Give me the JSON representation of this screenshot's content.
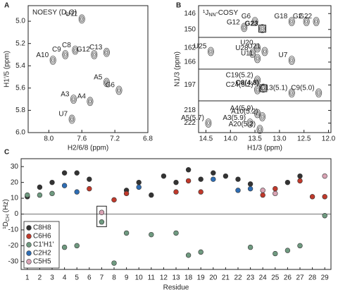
{
  "chart_data": [
    {
      "type": "spectrum",
      "panel": "A",
      "title": "NOESY (D₂O)",
      "x_label": "H2/6/8 (ppm)",
      "y_label": "H1′/5 (ppm)",
      "xlim": [
        8.25,
        6.8
      ],
      "ylim": [
        4.86,
        6.0
      ],
      "xticks": [
        {
          "value": 8.0,
          "label": "8.0"
        },
        {
          "value": 7.6,
          "label": "7.6"
        },
        {
          "value": 7.2,
          "label": "7.2"
        },
        {
          "value": 6.8,
          "label": "6.8"
        }
      ],
      "yticks": [
        {
          "value": 5.0,
          "label": "5.0"
        },
        {
          "value": 5.2,
          "label": "5.2"
        },
        {
          "value": 5.4,
          "label": "5.4"
        },
        {
          "value": 5.6,
          "label": "5.6"
        },
        {
          "value": 5.8,
          "label": "5.8"
        },
        {
          "value": 6.0,
          "label": "6.0"
        }
      ],
      "color": "#555555",
      "peaks": [
        {
          "label": "A10",
          "x": 7.95,
          "y": 5.35
        },
        {
          "label": "C9",
          "x": 7.8,
          "y": 5.3
        },
        {
          "label": "C8",
          "x": 7.68,
          "y": 5.26
        },
        {
          "label": "U11",
          "x": 7.6,
          "y": 4.98
        },
        {
          "label": "G12",
          "x": 7.45,
          "y": 5.3
        },
        {
          "label": "C13",
          "x": 7.3,
          "y": 5.28
        },
        {
          "label": "A5",
          "x": 7.3,
          "y": 5.55
        },
        {
          "label": "G6",
          "x": 7.15,
          "y": 5.62
        },
        {
          "label": "A3",
          "x": 7.7,
          "y": 5.7
        },
        {
          "label": "A4",
          "x": 7.5,
          "y": 5.72
        },
        {
          "label": "U7",
          "x": 7.72,
          "y": 5.88
        }
      ]
    },
    {
      "type": "spectrum",
      "panel": "B",
      "title": {
        "main": "¹J",
        "sub": "NN",
        "rest": "-COSY"
      },
      "x_label": "H1/3 (ppm)",
      "y_label": "N1/3 (ppm)",
      "xlim": [
        14.65,
        11.95
      ],
      "xticks": [
        {
          "value": 14.5,
          "label": "14.5"
        },
        {
          "value": 14.0,
          "label": "14.0"
        },
        {
          "value": 13.5,
          "label": "13.5"
        },
        {
          "value": 13.0,
          "label": "13.0"
        },
        {
          "value": 12.5,
          "label": "12.5"
        },
        {
          "value": 12.0,
          "label": "12.0"
        }
      ],
      "y_segments": [
        {
          "ylim": [
            144,
            152
          ],
          "yticks": [
            146,
            150
          ]
        },
        {
          "ylim": [
            159,
            168
          ],
          "yticks": [
            162,
            166
          ]
        },
        {
          "ylim": [
            192,
            202
          ],
          "yticks": [
            197
          ]
        },
        {
          "ylim": [
            215,
            225
          ],
          "yticks": [
            218,
            222
          ]
        }
      ],
      "color": "#555555",
      "peaks": [
        {
          "label": "G12",
          "x": 13.72,
          "y": 149.5
        },
        {
          "label": "G6",
          "x": 13.5,
          "y": 148
        },
        {
          "label": "G23",
          "x": 13.35,
          "y": 149.8,
          "bold": true
        },
        {
          "label": "G18",
          "x": 12.75,
          "y": 148
        },
        {
          "label": "G2",
          "x": 12.45,
          "y": 148
        },
        {
          "label": "G22",
          "x": 12.25,
          "y": 148
        },
        {
          "label": "U25",
          "x": 14.4,
          "y": 163
        },
        {
          "label": "U28",
          "x": 13.55,
          "y": 163.5
        },
        {
          "label": "U20",
          "x": 13.45,
          "y": 162
        },
        {
          "label": "U21",
          "x": 13.3,
          "y": 163
        },
        {
          "label": "U11",
          "x": 13.45,
          "y": 165
        },
        {
          "label": "U7",
          "x": 12.75,
          "y": 165.5
        },
        {
          "label": "C19(5.2)",
          "x": 13.45,
          "y": 195.5
        },
        {
          "label": "C24(5.2)",
          "x": 13.45,
          "y": 198.5
        },
        {
          "label": "C8(4.8)",
          "x": 13.33,
          "y": 198,
          "bold": true
        },
        {
          "label": "C13(5.1)",
          "x": 12.75,
          "y": 199.5
        },
        {
          "label": "C9(5.0)",
          "x": 12.2,
          "y": 199.5
        },
        {
          "label": "A4(5.9)",
          "x": 13.45,
          "y": 219
        },
        {
          "label": "A10(5.2)",
          "x": 13.35,
          "y": 220
        },
        {
          "label": "A3(5.9)",
          "x": 13.6,
          "y": 222
        },
        {
          "label": "A5(5.7)",
          "x": 14.45,
          "y": 222
        },
        {
          "label": "A20(5.2)",
          "x": 13.4,
          "y": 224
        }
      ]
    },
    {
      "type": "scatter",
      "panel": "C",
      "x_label": "Residue",
      "y_label": {
        "main": "¹D",
        "sub": "CH",
        "rest": " (Hz)"
      },
      "categories": [
        "1",
        "2",
        "3",
        "4",
        "5",
        "6",
        "7",
        "8",
        "9",
        "10",
        "11",
        "12",
        "13",
        "18",
        "19",
        "20",
        "21",
        "22",
        "23",
        "24",
        "25",
        "26",
        "27",
        "28",
        "29"
      ],
      "category_colors": [
        "#c0392b",
        "#c0392b",
        "#c0392b",
        "#c0392b",
        "#c0392b",
        "#c0392b",
        "#c0392b",
        "#c0392b",
        "#2e6db4",
        "#2e6db4",
        "#2e6db4",
        "#2e6db4",
        "#2e6db4",
        "#2e6db4",
        "#2e6db4",
        "#2e6db4",
        "#2e6db4",
        "#2e6db4",
        "#2e6db4",
        "#c0392b",
        "#c0392b",
        "#c0392b",
        "#c0392b",
        "#c0392b",
        "#c0392b"
      ],
      "ylim": [
        -35,
        35
      ],
      "yticks": [
        -30,
        -20,
        -10,
        0,
        10,
        20,
        30
      ],
      "grid": false,
      "legend": "lower left",
      "series": [
        {
          "name": "C8H8",
          "color": "#333333",
          "values": [
            11,
            17,
            20,
            26,
            26,
            22,
            null,
            null,
            15,
            20,
            12,
            24,
            20,
            28,
            22,
            26,
            24,
            22,
            19,
            null,
            null,
            20,
            24,
            null,
            null
          ]
        },
        {
          "name": "C6H6",
          "color": "#c0392b",
          "values": [
            null,
            null,
            null,
            null,
            null,
            16,
            null,
            9,
            13,
            null,
            null,
            null,
            14,
            21,
            14,
            null,
            null,
            null,
            null,
            12,
            16,
            null,
            21,
            11,
            11
          ]
        },
        {
          "name": "C1'H1'",
          "color": "#6f9a80",
          "values": [
            12,
            12,
            13,
            -21,
            -20,
            null,
            -5,
            -31,
            -12,
            null,
            -13,
            null,
            -12,
            -26,
            -24,
            null,
            null,
            null,
            -21,
            null,
            -25,
            -23,
            -20,
            null,
            -1
          ]
        },
        {
          "name": "C2H2",
          "color": "#2e6db4",
          "values": [
            null,
            null,
            null,
            18,
            14,
            null,
            null,
            null,
            null,
            17,
            null,
            null,
            null,
            null,
            null,
            22,
            null,
            15,
            16,
            null,
            null,
            null,
            null,
            null,
            null
          ]
        },
        {
          "name": "C5H5",
          "color": "#d9a3b4",
          "values": [
            null,
            null,
            null,
            null,
            null,
            null,
            1,
            null,
            null,
            null,
            null,
            null,
            null,
            null,
            null,
            null,
            null,
            null,
            null,
            15,
            13,
            null,
            null,
            null,
            24
          ]
        }
      ]
    }
  ]
}
